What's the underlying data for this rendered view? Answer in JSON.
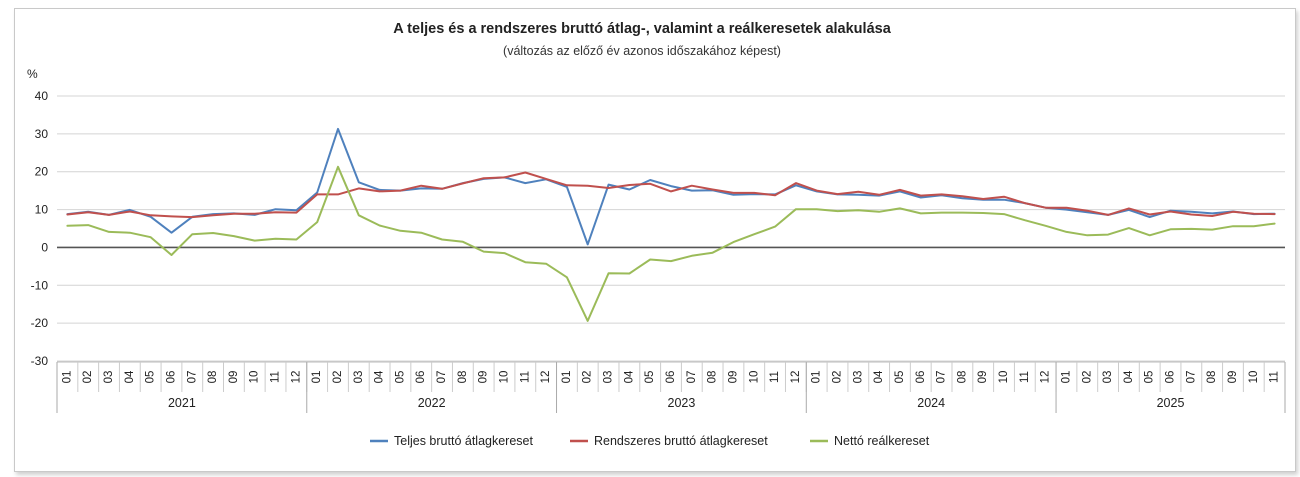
{
  "chart_data": {
    "type": "line",
    "title": "A teljes és a rendszeres bruttó átlag-, valamint a reálkeresetek alakulása",
    "subtitle": "(változás az előző év azonos időszakához képest)",
    "ylabel": "%",
    "ylim": [
      -30,
      40
    ],
    "yticks": [
      40,
      30,
      20,
      10,
      0,
      -10,
      -20,
      -30
    ],
    "ytick_labels": [
      "40",
      "30",
      "20",
      "10",
      "0",
      "-10",
      "-20",
      "-30"
    ],
    "years": [
      {
        "label": "2021",
        "months": [
          "01",
          "02",
          "03",
          "04",
          "05",
          "06",
          "07",
          "08",
          "09",
          "10",
          "11",
          "12"
        ]
      },
      {
        "label": "2022",
        "months": [
          "01",
          "02",
          "03",
          "04",
          "05",
          "06",
          "07",
          "08",
          "09",
          "10",
          "11",
          "12"
        ]
      },
      {
        "label": "2023",
        "months": [
          "01",
          "02",
          "03",
          "04",
          "05",
          "06",
          "07",
          "08",
          "09",
          "10",
          "11",
          "12"
        ]
      },
      {
        "label": "2024",
        "months": [
          "01",
          "02",
          "03",
          "04",
          "05",
          "06",
          "07",
          "08",
          "09",
          "10",
          "11",
          "12"
        ]
      },
      {
        "label": "2025",
        "months": [
          "01",
          "02",
          "03",
          "04",
          "05",
          "06",
          "07",
          "08",
          "09",
          "10",
          "11"
        ]
      }
    ],
    "series": [
      {
        "name": "Teljes bruttó átlagkereset",
        "color": "#4f81bd",
        "values": [
          8.8,
          9.4,
          8.6,
          9.9,
          8.1,
          3.9,
          8.1,
          8.8,
          9.0,
          8.6,
          10.1,
          9.8,
          14.5,
          31.3,
          17.2,
          15.2,
          15.0,
          15.6,
          15.5,
          17.0,
          18.1,
          18.5,
          17.0,
          18.0,
          16.0,
          0.8,
          16.6,
          15.3,
          17.8,
          16.2,
          15.0,
          15.1,
          13.9,
          14.1,
          14.0,
          16.4,
          14.8,
          14.0,
          13.9,
          13.7,
          14.8,
          13.2,
          13.8,
          13.0,
          12.6,
          12.6,
          11.7,
          10.5,
          10.0,
          9.3,
          8.6,
          9.9,
          8.0,
          9.7,
          9.4,
          9.0,
          9.5,
          8.8,
          8.9
        ]
      },
      {
        "name": "Rendszeres bruttó átlagkereset",
        "color": "#c0504d",
        "values": [
          8.7,
          9.3,
          8.6,
          9.5,
          8.5,
          8.2,
          8.0,
          8.5,
          8.9,
          8.9,
          9.3,
          9.2,
          14.0,
          14.0,
          15.6,
          14.8,
          15.0,
          16.3,
          15.5,
          16.9,
          18.3,
          18.5,
          19.8,
          18.1,
          16.4,
          16.3,
          15.7,
          16.5,
          16.8,
          14.8,
          16.3,
          15.3,
          14.4,
          14.4,
          13.8,
          17.0,
          15.0,
          14.1,
          14.7,
          13.9,
          15.2,
          13.7,
          14.0,
          13.5,
          12.8,
          13.4,
          11.7,
          10.5,
          10.5,
          9.7,
          8.6,
          10.3,
          8.7,
          9.5,
          8.7,
          8.3,
          9.4,
          8.9,
          8.8
        ]
      },
      {
        "name": "Nettó reálkereset",
        "color": "#9bbb59",
        "values": [
          5.7,
          5.9,
          4.1,
          3.9,
          2.7,
          -2.0,
          3.5,
          3.8,
          3.0,
          1.8,
          2.3,
          2.1,
          6.7,
          21.3,
          8.5,
          5.8,
          4.4,
          3.9,
          2.1,
          1.5,
          -1.1,
          -1.5,
          -3.9,
          -4.3,
          -7.9,
          -19.4,
          -6.8,
          -6.9,
          -3.2,
          -3.6,
          -2.2,
          -1.4,
          1.4,
          3.5,
          5.5,
          10.1,
          10.1,
          9.6,
          9.8,
          9.4,
          10.3,
          9.0,
          9.2,
          9.2,
          9.1,
          8.8,
          7.2,
          5.7,
          4.1,
          3.2,
          3.4,
          5.1,
          3.2,
          4.8,
          4.9,
          4.7,
          5.6,
          5.6,
          6.3
        ]
      }
    ]
  }
}
